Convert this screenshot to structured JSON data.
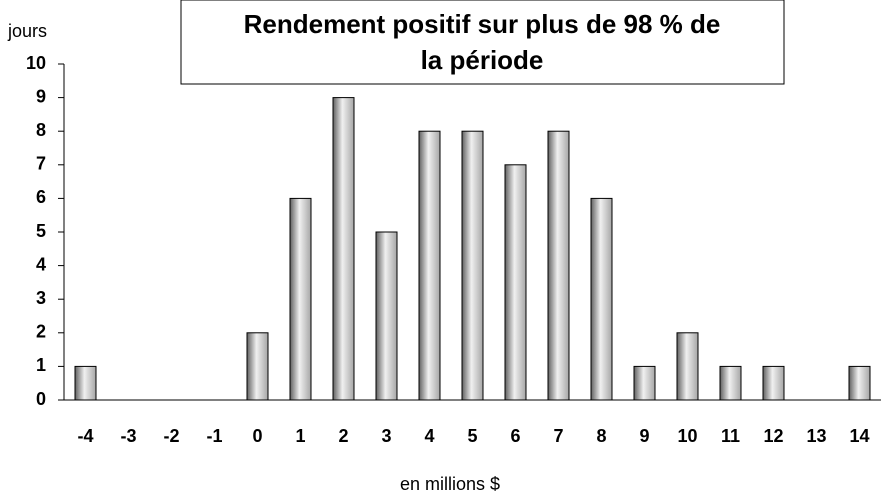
{
  "chart_data": {
    "type": "bar",
    "title": "Rendement positif sur plus de 98 % de la période",
    "y_label": "jours",
    "x_label": "en millions $",
    "categories": [
      "-4",
      "-3",
      "-2",
      "-1",
      "0",
      "1",
      "2",
      "3",
      "4",
      "5",
      "6",
      "7",
      "8",
      "9",
      "10",
      "11",
      "12",
      "13",
      "14"
    ],
    "values": [
      1,
      0,
      0,
      0,
      2,
      6,
      9,
      5,
      8,
      8,
      7,
      8,
      6,
      1,
      2,
      1,
      1,
      0,
      1
    ],
    "color": "#a6a6a6",
    "ylim": [
      0,
      10
    ],
    "yticks": [
      0,
      1,
      2,
      3,
      4,
      5,
      6,
      7,
      8,
      9,
      10
    ],
    "grid": false
  }
}
